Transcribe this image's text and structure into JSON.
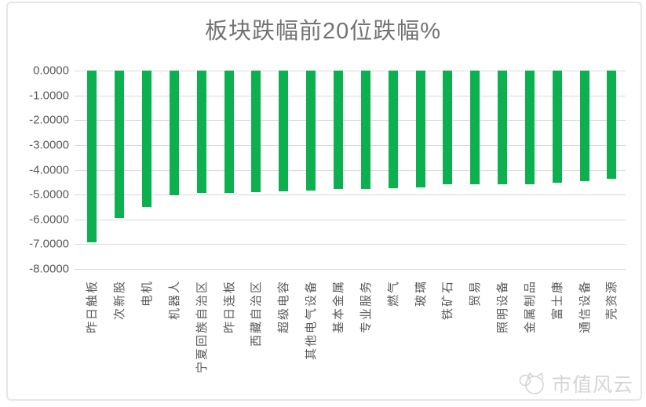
{
  "title": "板块跌幅前20位跌幅%",
  "watermark": {
    "text": "市值风云",
    "logo": "cat-mascot-logo"
  },
  "colors": {
    "bar": "#0cb04e",
    "gridline": "#d9d9d9",
    "axis_text": "#595959",
    "title_text": "#737373",
    "watermark_text": "#d5d5d5",
    "frame_border": "#e6e6e6"
  },
  "chart_data": {
    "type": "bar",
    "title": "板块跌幅前20位跌幅%",
    "categories": [
      "昨日触板",
      "次新股",
      "电机",
      "机器人",
      "宁夏回族自治区",
      "昨日连板",
      "西藏自治区",
      "超级电容",
      "其他电气设备",
      "基本金属",
      "专业服务",
      "燃气",
      "玻璃",
      "铁矿石",
      "贸易",
      "照明设备",
      "金属制品",
      "富士康",
      "通信设备",
      "壳资源"
    ],
    "values": [
      -6.92,
      -5.95,
      -5.5,
      -5.03,
      -4.94,
      -4.93,
      -4.89,
      -4.87,
      -4.84,
      -4.79,
      -4.77,
      -4.75,
      -4.71,
      -4.6,
      -4.59,
      -4.58,
      -4.57,
      -4.52,
      -4.45,
      -4.37
    ],
    "ylabel": "",
    "xlabel": "",
    "ylim": [
      -8,
      0
    ],
    "ytick_labels": [
      "0.0000",
      "-1.0000",
      "-2.0000",
      "-3.0000",
      "-4.0000",
      "-5.0000",
      "-6.0000",
      "-7.0000",
      "-8.0000"
    ],
    "grid": true,
    "legend": false,
    "bar_color": "#0cb04e",
    "orientation": "vertical",
    "bars_sorted": "descending-magnitude"
  }
}
